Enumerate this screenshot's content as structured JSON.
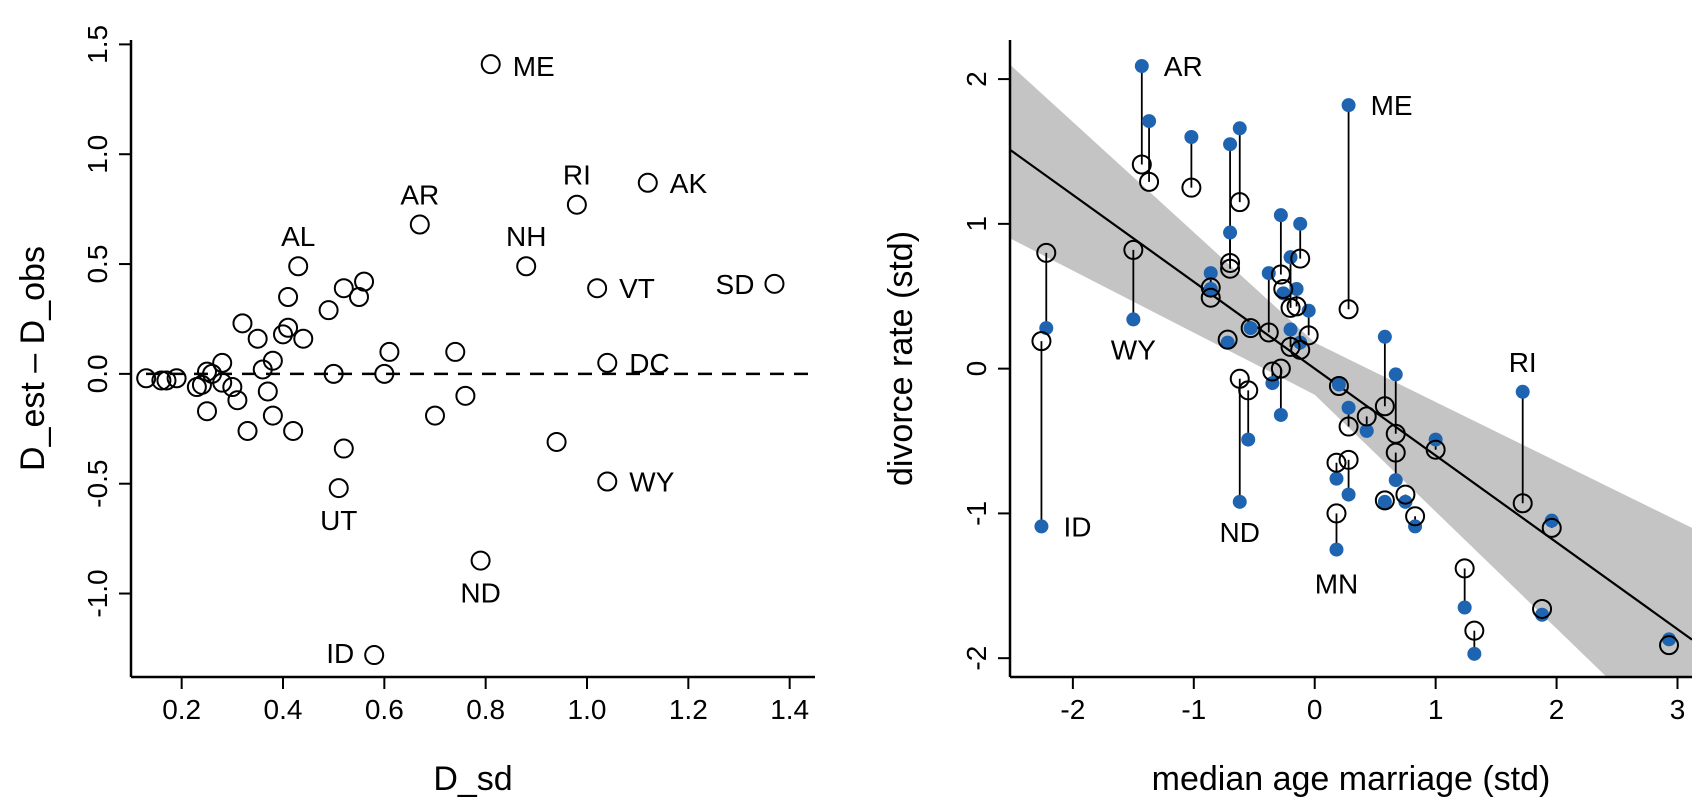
{
  "chart_data": [
    {
      "type": "scatter",
      "xlabel": "D_sd",
      "ylabel": "D_est – D_obs",
      "xlim": [
        0.1,
        1.45
      ],
      "ylim": [
        -1.38,
        1.52
      ],
      "x_ticks": [
        "0.2",
        "0.4",
        "0.6",
        "0.8",
        "1.0",
        "1.2",
        "1.4"
      ],
      "y_ticks": [
        "-1.0",
        "-0.5",
        "0.0",
        "0.5",
        "1.0",
        "1.5"
      ],
      "reference_line": {
        "y": 0,
        "style": "dashed"
      },
      "marker": "open-circle",
      "points": [
        {
          "x": 0.13,
          "y": -0.02
        },
        {
          "x": 0.16,
          "y": -0.03
        },
        {
          "x": 0.17,
          "y": -0.03
        },
        {
          "x": 0.19,
          "y": -0.02
        },
        {
          "x": 0.23,
          "y": -0.06
        },
        {
          "x": 0.24,
          "y": -0.05
        },
        {
          "x": 0.25,
          "y": 0.01
        },
        {
          "x": 0.25,
          "y": -0.17
        },
        {
          "x": 0.26,
          "y": 0.0
        },
        {
          "x": 0.28,
          "y": -0.04
        },
        {
          "x": 0.28,
          "y": 0.05
        },
        {
          "x": 0.3,
          "y": -0.06
        },
        {
          "x": 0.31,
          "y": -0.12
        },
        {
          "x": 0.32,
          "y": 0.23
        },
        {
          "x": 0.33,
          "y": -0.26
        },
        {
          "x": 0.35,
          "y": 0.16
        },
        {
          "x": 0.36,
          "y": 0.02
        },
        {
          "x": 0.37,
          "y": -0.08
        },
        {
          "x": 0.38,
          "y": 0.06
        },
        {
          "x": 0.38,
          "y": -0.19
        },
        {
          "x": 0.4,
          "y": 0.18
        },
        {
          "x": 0.41,
          "y": 0.35
        },
        {
          "x": 0.41,
          "y": 0.21
        },
        {
          "x": 0.42,
          "y": -0.26
        },
        {
          "x": 0.43,
          "y": 0.49,
          "label": "AL"
        },
        {
          "x": 0.44,
          "y": 0.16
        },
        {
          "x": 0.49,
          "y": 0.29
        },
        {
          "x": 0.5,
          "y": 0.0
        },
        {
          "x": 0.51,
          "y": -0.52,
          "label": "UT"
        },
        {
          "x": 0.52,
          "y": 0.39
        },
        {
          "x": 0.52,
          "y": -0.34
        },
        {
          "x": 0.55,
          "y": 0.35
        },
        {
          "x": 0.56,
          "y": 0.42
        },
        {
          "x": 0.58,
          "y": -1.28,
          "label": "ID"
        },
        {
          "x": 0.6,
          "y": 0.0
        },
        {
          "x": 0.61,
          "y": 0.1
        },
        {
          "x": 0.67,
          "y": 0.68,
          "label": "AR"
        },
        {
          "x": 0.7,
          "y": -0.19
        },
        {
          "x": 0.74,
          "y": 0.1
        },
        {
          "x": 0.76,
          "y": -0.1
        },
        {
          "x": 0.79,
          "y": -0.85,
          "label": "ND"
        },
        {
          "x": 0.81,
          "y": 1.41,
          "label": "ME"
        },
        {
          "x": 0.88,
          "y": 0.49,
          "label": "NH"
        },
        {
          "x": 0.94,
          "y": -0.31
        },
        {
          "x": 0.98,
          "y": 0.77,
          "label": "RI"
        },
        {
          "x": 1.02,
          "y": 0.39,
          "label": "VT"
        },
        {
          "x": 1.04,
          "y": 0.05,
          "label": "DC"
        },
        {
          "x": 1.04,
          "y": -0.49,
          "label": "WY"
        },
        {
          "x": 1.12,
          "y": 0.87,
          "label": "AK"
        },
        {
          "x": 1.37,
          "y": 0.41,
          "label": "SD"
        }
      ]
    },
    {
      "type": "scatter",
      "xlabel": "median age marriage (std)",
      "ylabel": "divorce rate (std)",
      "xlim": [
        -2.52,
        3.12
      ],
      "ylim": [
        -2.13,
        2.27
      ],
      "x_ticks": [
        "-2",
        "-1",
        "0",
        "1",
        "2",
        "3"
      ],
      "y_ticks": [
        "-2",
        "-1",
        "0",
        "1",
        "2"
      ],
      "regression": {
        "intercept": 0.0,
        "slope": -0.6,
        "band": [
          {
            "x": -2.52,
            "lo": 0.9,
            "hi": 2.1
          },
          {
            "x": 0,
            "lo": -0.18,
            "hi": 0.18
          },
          {
            "x": 3.12,
            "lo": -2.7,
            "hi": -1.1
          }
        ]
      },
      "series": [
        {
          "marker": "filled-circle",
          "color": "#1f64b0"
        },
        {
          "marker": "open-circle",
          "color": "#000000"
        }
      ],
      "points": [
        {
          "x": -2.26,
          "obs": -1.09,
          "est": 0.19,
          "label": "ID"
        },
        {
          "x": -2.22,
          "obs": 0.28,
          "est": 0.8
        },
        {
          "x": -1.43,
          "obs": 2.09,
          "est": 1.41,
          "label": "AR"
        },
        {
          "x": -1.37,
          "obs": 1.71,
          "est": 1.29
        },
        {
          "x": -1.5,
          "obs": 0.34,
          "est": 0.82,
          "label": "WY"
        },
        {
          "x": -1.02,
          "obs": 1.6,
          "est": 1.25
        },
        {
          "x": -0.86,
          "obs": 0.66,
          "est": 0.56
        },
        {
          "x": -0.86,
          "obs": 0.55,
          "est": 0.49
        },
        {
          "x": -0.7,
          "obs": 1.55,
          "est": 0.73
        },
        {
          "x": -0.7,
          "obs": 0.94,
          "est": 0.69
        },
        {
          "x": -0.72,
          "obs": 0.18,
          "est": 0.2
        },
        {
          "x": -0.62,
          "obs": 1.66,
          "est": 1.15
        },
        {
          "x": -0.62,
          "obs": -0.92,
          "est": -0.07,
          "label": "ND"
        },
        {
          "x": -0.55,
          "obs": -0.49,
          "est": -0.15
        },
        {
          "x": -0.53,
          "obs": 0.28,
          "est": 0.28
        },
        {
          "x": -0.38,
          "obs": 0.66,
          "est": 0.25
        },
        {
          "x": -0.35,
          "obs": -0.1,
          "est": -0.02
        },
        {
          "x": -0.28,
          "obs": 1.06,
          "est": 0.65
        },
        {
          "x": -0.28,
          "obs": -0.32,
          "est": 0.0
        },
        {
          "x": -0.26,
          "obs": 0.52,
          "est": 0.55
        },
        {
          "x": -0.2,
          "obs": 0.77,
          "est": 0.42
        },
        {
          "x": -0.2,
          "obs": 0.27,
          "est": 0.15
        },
        {
          "x": -0.15,
          "obs": 0.55,
          "est": 0.43
        },
        {
          "x": -0.12,
          "obs": 1.0,
          "est": 0.76
        },
        {
          "x": -0.12,
          "obs": 0.18,
          "est": 0.13
        },
        {
          "x": -0.05,
          "obs": 0.4,
          "est": 0.23
        },
        {
          "x": 0.18,
          "obs": -0.76,
          "est": -0.65
        },
        {
          "x": 0.18,
          "obs": -1.25,
          "est": -1.0,
          "label": "MN"
        },
        {
          "x": 0.2,
          "obs": -0.11,
          "est": -0.12
        },
        {
          "x": 0.28,
          "obs": 1.82,
          "est": 0.41,
          "label": "ME"
        },
        {
          "x": 0.28,
          "obs": -0.87,
          "est": -0.63
        },
        {
          "x": 0.28,
          "obs": -0.27,
          "est": -0.4
        },
        {
          "x": 0.43,
          "obs": -0.43,
          "est": -0.33
        },
        {
          "x": 0.58,
          "obs": 0.22,
          "est": -0.26
        },
        {
          "x": 0.58,
          "obs": -0.92,
          "est": -0.91
        },
        {
          "x": 0.67,
          "obs": -0.04,
          "est": -0.45
        },
        {
          "x": 0.67,
          "obs": -0.77,
          "est": -0.58
        },
        {
          "x": 0.75,
          "obs": -0.92,
          "est": -0.87
        },
        {
          "x": 0.83,
          "obs": -1.09,
          "est": -1.02
        },
        {
          "x": 1.0,
          "obs": -0.49,
          "est": -0.56
        },
        {
          "x": 1.24,
          "obs": -1.65,
          "est": -1.38
        },
        {
          "x": 1.32,
          "obs": -1.97,
          "est": -1.81
        },
        {
          "x": 1.72,
          "obs": -0.16,
          "est": -0.93,
          "label": "RI"
        },
        {
          "x": 1.88,
          "obs": -1.7,
          "est": -1.66
        },
        {
          "x": 1.96,
          "obs": -1.05,
          "est": -1.1
        },
        {
          "x": 2.93,
          "obs": -1.87,
          "est": -1.91
        }
      ]
    }
  ]
}
